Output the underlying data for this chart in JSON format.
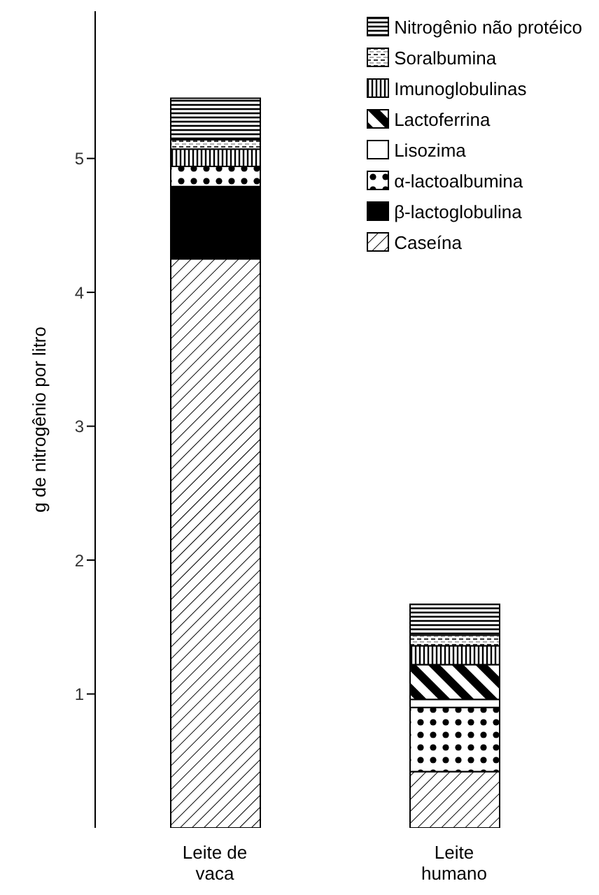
{
  "chart_data": {
    "type": "bar",
    "stacked": true,
    "ylabel": "g de nitrogênio por litro",
    "categories": [
      "Leite de vaca",
      "Leite humano"
    ],
    "series": [
      {
        "name": "Caseína",
        "color": "#000000",
        "values": [
          4.25,
          0.42
        ]
      },
      {
        "name": "β-lactoglobulina",
        "color": "#000000",
        "values": [
          0.54,
          0
        ]
      },
      {
        "name": "α-lactoalbumina",
        "color": "#000000",
        "values": [
          0.15,
          0.48
        ]
      },
      {
        "name": "Lisozima",
        "color": "#000000",
        "values": [
          0,
          0.06
        ]
      },
      {
        "name": "Lactoferrina",
        "color": "#000000",
        "values": [
          0,
          0.26
        ]
      },
      {
        "name": "Imunoglobulinas",
        "color": "#000000",
        "values": [
          0.13,
          0.14
        ]
      },
      {
        "name": "Soralbumina",
        "color": "#000000",
        "values": [
          0.07,
          0.08
        ]
      },
      {
        "name": "Nitrogênio não protéico",
        "color": "#000000",
        "values": [
          0.31,
          0.23
        ]
      }
    ],
    "ylim": [
      0,
      6.1
    ],
    "yticks": [
      1,
      2,
      3,
      4,
      5
    ],
    "legend": "top right"
  }
}
